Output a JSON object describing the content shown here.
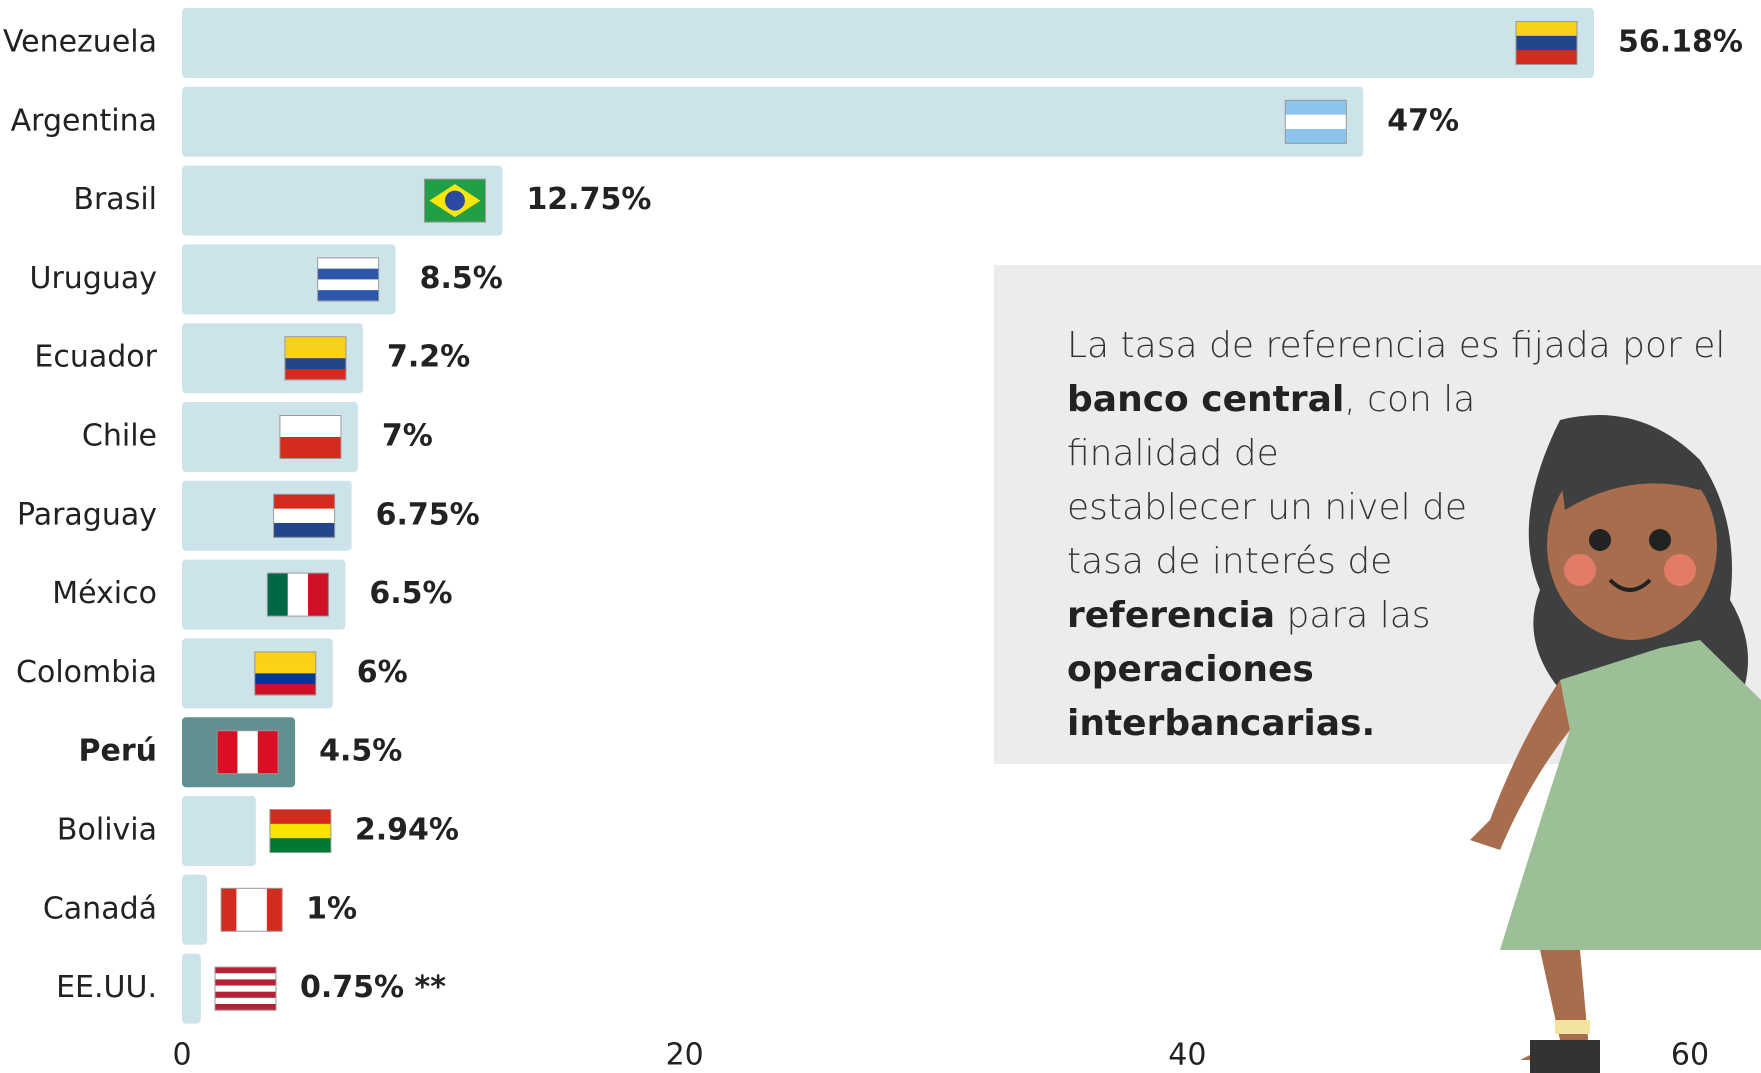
{
  "chart_data": {
    "type": "bar",
    "orientation": "horizontal",
    "categories": [
      "Venezuela",
      "Argentina",
      "Brasil",
      "Uruguay",
      "Ecuador",
      "Chile",
      "Paraguay",
      "México",
      "Colombia",
      "Perú",
      "Bolivia",
      "Canadá",
      "EE.UU."
    ],
    "values": [
      56.18,
      47,
      12.75,
      8.5,
      7.2,
      7,
      6.75,
      6.5,
      6,
      4.5,
      2.94,
      1,
      0.75
    ],
    "value_labels": [
      "56.18%",
      "47%",
      "12.75%",
      "8.5%",
      "7.2%",
      "7%",
      "6.75%",
      "6.5%",
      "6%",
      "4.5%",
      "2.94%",
      "1%",
      "0.75% **"
    ],
    "colors": [
      "#cce3ea",
      "#cce3ea",
      "#cce3ea",
      "#cce3ea",
      "#cce3ea",
      "#cce3ea",
      "#cce3ea",
      "#cce3ea",
      "#cce3ea",
      "#5f8f8f",
      "#cce3ea",
      "#cce3ea",
      "#cce3ea"
    ],
    "bold_categories": [
      false,
      false,
      false,
      false,
      false,
      false,
      false,
      false,
      false,
      true,
      false,
      false,
      false
    ],
    "xlim": [
      0,
      60
    ],
    "xticks": [
      0,
      20,
      40,
      60
    ],
    "grid": false,
    "annotation": [
      {
        "text": "La tasa de referencia es fijada por el ",
        "bold": false
      },
      {
        "text": "banco central",
        "bold": true
      },
      {
        "text": ", con la finalidad de establecer un nivel de tasa de interés de ",
        "bold": false
      },
      {
        "text": "referencia",
        "bold": true
      },
      {
        "text": " para las ",
        "bold": false
      },
      {
        "text": "operaciones interbancarias.",
        "bold": true
      }
    ]
  }
}
